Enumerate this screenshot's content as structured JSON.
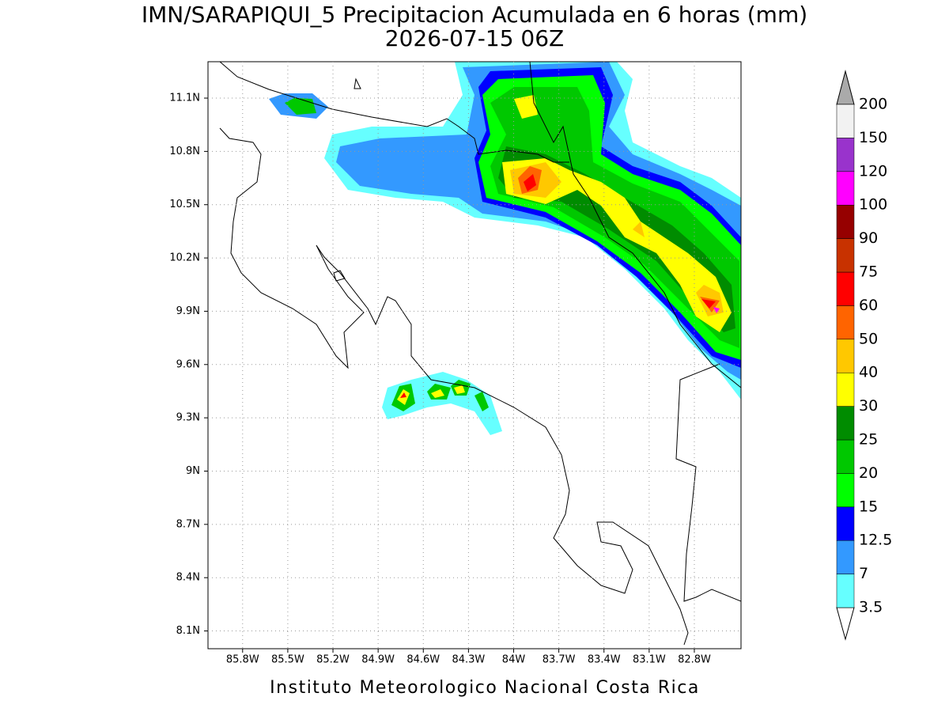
{
  "title": "IMN/SARAPIQUI_5 Precipitacion Acumulada en 6 horas (mm)",
  "subtitle": "2026-07-15 06Z",
  "footer": "Instituto Meteorologico Nacional Costa Rica",
  "map": {
    "xlim": [
      -86.03,
      -82.49
    ],
    "ylim": [
      8.0,
      11.305
    ],
    "grid": true,
    "xticks": [
      {
        "value": -85.8,
        "label": "85.8W"
      },
      {
        "value": -85.5,
        "label": "85.5W"
      },
      {
        "value": -85.2,
        "label": "85.2W"
      },
      {
        "value": -84.9,
        "label": "84.9W"
      },
      {
        "value": -84.6,
        "label": "84.6W"
      },
      {
        "value": -84.3,
        "label": "84.3W"
      },
      {
        "value": -84.0,
        "label": "84W"
      },
      {
        "value": -83.7,
        "label": "83.7W"
      },
      {
        "value": -83.4,
        "label": "83.4W"
      },
      {
        "value": -83.1,
        "label": "83.1W"
      },
      {
        "value": -82.8,
        "label": "82.8W"
      }
    ],
    "yticks": [
      {
        "value": 11.1,
        "label": "11.1N"
      },
      {
        "value": 10.8,
        "label": "10.8N"
      },
      {
        "value": 10.5,
        "label": "10.5N"
      },
      {
        "value": 10.2,
        "label": "10.2N"
      },
      {
        "value": 9.9,
        "label": "9.9N"
      },
      {
        "value": 9.6,
        "label": "9.6N"
      },
      {
        "value": 9.3,
        "label": "9.3N"
      },
      {
        "value": 9.0,
        "label": "9N"
      },
      {
        "value": 8.7,
        "label": "8.7N"
      },
      {
        "value": 8.4,
        "label": "8.4N"
      },
      {
        "value": 8.1,
        "label": "8.1N"
      }
    ]
  },
  "colorbar": {
    "levels": [
      3.5,
      7,
      12.5,
      15,
      20,
      25,
      30,
      40,
      50,
      60,
      75,
      90,
      100,
      120,
      150,
      200
    ],
    "colors": [
      "#66ffff",
      "#3399ff",
      "#0000ff",
      "#00ff00",
      "#00c800",
      "#008c00",
      "#ffff00",
      "#ffc800",
      "#ff6400",
      "#ff0000",
      "#c83200",
      "#960000",
      "#ff00ff",
      "#9933cc",
      "#f2f2f2"
    ],
    "under_color": "#ffffff",
    "over_color": "#aaaaaa"
  }
}
